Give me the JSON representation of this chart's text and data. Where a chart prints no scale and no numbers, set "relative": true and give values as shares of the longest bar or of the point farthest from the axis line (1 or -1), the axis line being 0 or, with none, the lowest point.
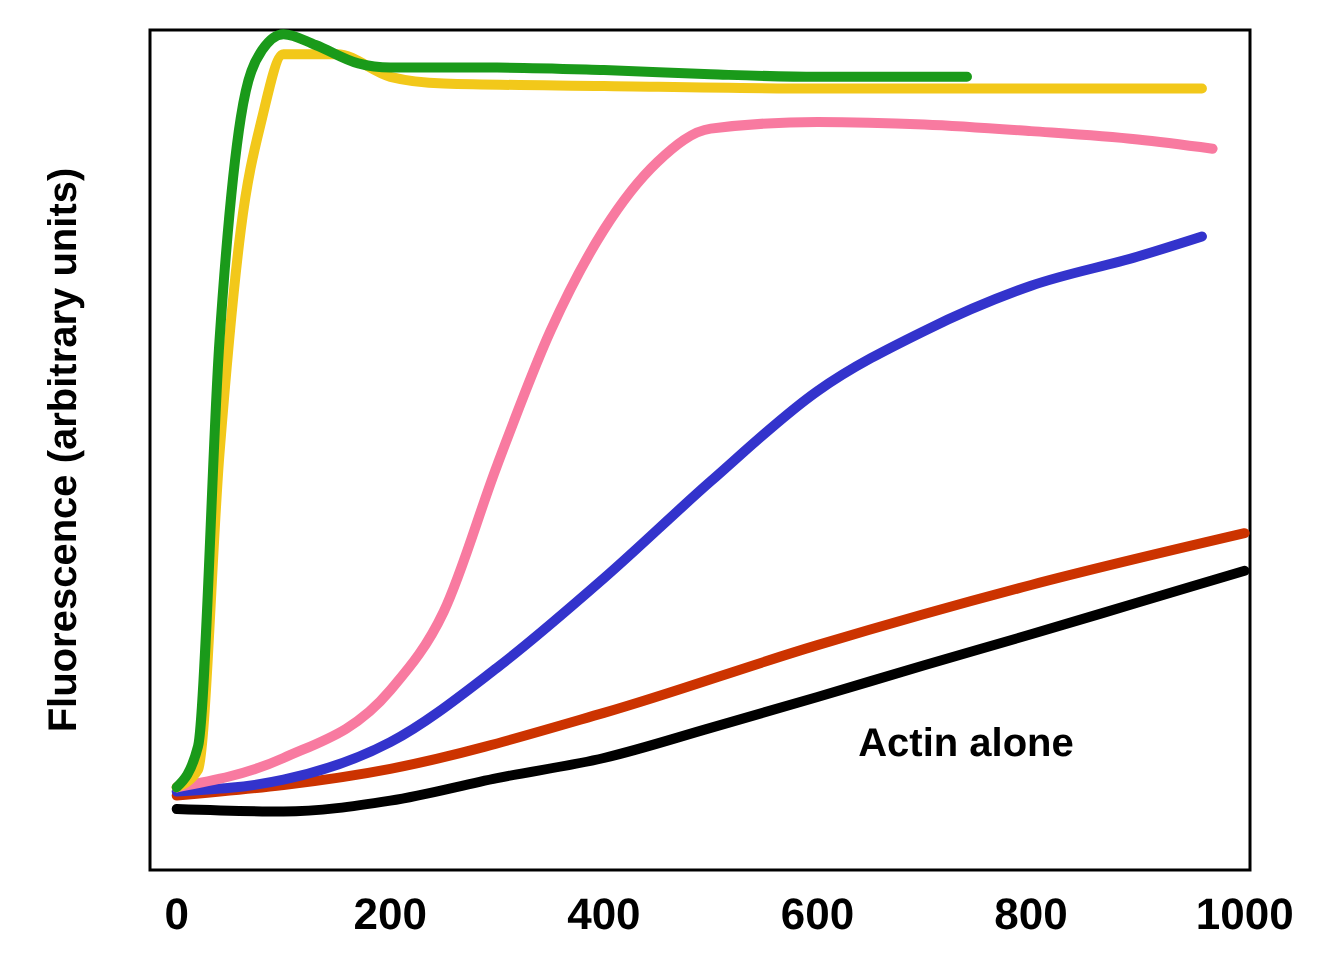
{
  "chart_data": {
    "type": "line",
    "relative": true,
    "ylabel": "Fluorescence (arbitrary units)",
    "xlim": [
      -25,
      1005
    ],
    "xticks": [
      0,
      200,
      400,
      600,
      800,
      1000
    ],
    "grid": false,
    "marker": "none",
    "line_style": "solid",
    "annotations": [
      "Actin alone"
    ],
    "series": [
      {
        "color": "#000000",
        "x": [
          0,
          100,
          200,
          300,
          400,
          500,
          600,
          700,
          800,
          900,
          1000
        ],
        "values": [
          0.073,
          0.07,
          0.083,
          0.11,
          0.134,
          0.17,
          0.207,
          0.245,
          0.282,
          0.32,
          0.358
        ]
      },
      {
        "color": "#cc3300",
        "x": [
          0,
          200,
          400,
          600,
          800,
          1000
        ],
        "values": [
          0.089,
          0.121,
          0.188,
          0.269,
          0.341,
          0.403
        ]
      },
      {
        "color": "#3333cc",
        "x": [
          0,
          100,
          200,
          300,
          400,
          500,
          600,
          700,
          800,
          900,
          960
        ],
        "values": [
          0.094,
          0.108,
          0.153,
          0.242,
          0.349,
          0.465,
          0.573,
          0.645,
          0.699,
          0.734,
          0.758
        ]
      },
      {
        "color": "#f87aa0",
        "x": [
          0,
          100,
          200,
          250,
          300,
          350,
          400,
          450,
          500,
          600,
          700,
          800,
          900,
          970
        ],
        "values": [
          0.099,
          0.134,
          0.215,
          0.309,
          0.484,
          0.645,
          0.766,
          0.847,
          0.887,
          0.895,
          0.892,
          0.884,
          0.874,
          0.863
        ]
      },
      {
        "color": "#f2c81a",
        "x": [
          0,
          20,
          40,
          60,
          80,
          100,
          150,
          200,
          250,
          400,
          600,
          800,
          960
        ],
        "values": [
          0.099,
          0.12,
          0.497,
          0.766,
          0.9,
          0.976,
          0.976,
          0.949,
          0.941,
          0.938,
          0.935,
          0.935,
          0.935
        ]
      },
      {
        "color": "#1a9a1a",
        "x": [
          0,
          20,
          40,
          60,
          80,
          100,
          130,
          170,
          200,
          300,
          400,
          500,
          600,
          740
        ],
        "values": [
          0.099,
          0.148,
          0.632,
          0.9,
          0.981,
          1,
          0.987,
          0.965,
          0.96,
          0.96,
          0.957,
          0.952,
          0.949,
          0.949
        ]
      }
    ]
  }
}
